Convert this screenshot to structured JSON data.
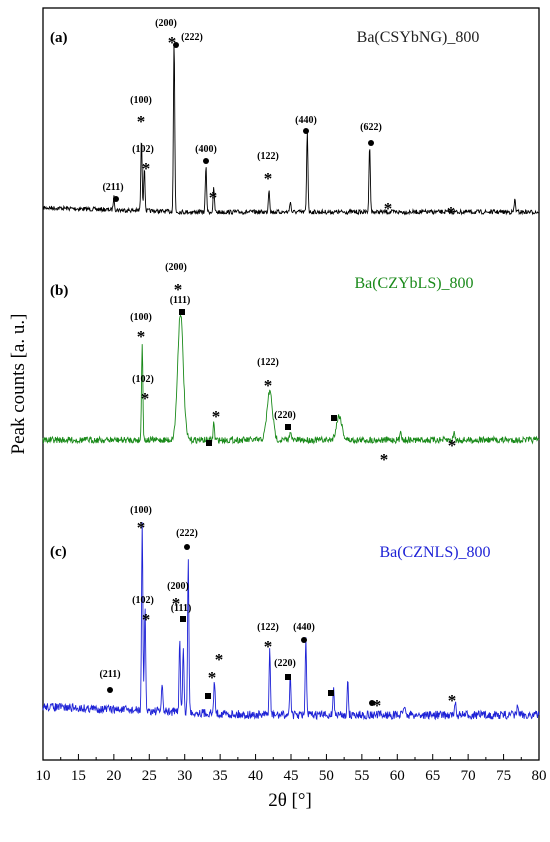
{
  "chart_data": {
    "type": "line",
    "xlabel": "2θ [°]",
    "ylabel": "Peak counts [a. u.]",
    "xlim": [
      10,
      80
    ],
    "x_ticks": [
      10,
      15,
      20,
      25,
      30,
      35,
      40,
      45,
      50,
      55,
      60,
      65,
      70,
      75,
      80
    ],
    "x_tick_labels": [
      "10",
      "15",
      "20",
      "25",
      "30",
      "35",
      "40",
      "45",
      "50",
      "55",
      "60",
      "65",
      "70",
      "75",
      "80"
    ],
    "y_ticks": "none",
    "grid": false,
    "panels": [
      {
        "id": "a",
        "letter": "(a)",
        "sample": "Ba(CSYbNG)_800",
        "color": "#000000",
        "base_pixel_hint": "top",
        "peaks_relative": [
          {
            "x": 20.0,
            "h": 0.07
          },
          {
            "x": 23.9,
            "h": 0.4
          },
          {
            "x": 24.3,
            "h": 0.24
          },
          {
            "x": 28.5,
            "h": 0.95
          },
          {
            "x": 33.0,
            "h": 0.25
          },
          {
            "x": 34.1,
            "h": 0.13
          },
          {
            "x": 41.9,
            "h": 0.13
          },
          {
            "x": 44.9,
            "h": 0.06
          },
          {
            "x": 47.3,
            "h": 0.45
          },
          {
            "x": 56.1,
            "h": 0.38
          },
          {
            "x": 76.6,
            "h": 0.07
          }
        ],
        "annotations": [
          {
            "label": "(211)",
            "x": 20.0,
            "marker": "circle"
          },
          {
            "label": "(100)",
            "x": 23.9,
            "marker": "star"
          },
          {
            "label": "(102)",
            "x": 24.3,
            "marker": "star"
          },
          {
            "label": "(200)",
            "x": 28.4,
            "marker": "star"
          },
          {
            "label": "(222)",
            "x": 28.6,
            "marker": "circle"
          },
          {
            "label": "(400)",
            "x": 33.0,
            "marker": "circle"
          },
          {
            "label": "",
            "x": 34.2,
            "marker": "star"
          },
          {
            "label": "(122)",
            "x": 41.9,
            "marker": "star"
          },
          {
            "label": "(440)",
            "x": 47.2,
            "marker": "circle"
          },
          {
            "label": "(622)",
            "x": 56.1,
            "marker": "circle"
          },
          {
            "label": "",
            "x": 59.0,
            "marker": "star"
          },
          {
            "label": "",
            "x": 67.8,
            "marker": "star"
          }
        ]
      },
      {
        "id": "b",
        "letter": "(b)",
        "sample": "Ba(CZYbLS)_800",
        "color": "#1a8a1a",
        "peaks_relative": [
          {
            "x": 24.0,
            "h": 0.45
          },
          {
            "x": 29.4,
            "h": 0.58
          },
          {
            "x": 34.1,
            "h": 0.08
          },
          {
            "x": 42.0,
            "h": 0.22
          },
          {
            "x": 44.9,
            "h": 0.05
          },
          {
            "x": 51.8,
            "h": 0.11
          },
          {
            "x": 60.5,
            "h": 0.05
          },
          {
            "x": 68.0,
            "h": 0.04
          }
        ],
        "annotations": [
          {
            "label": "(100)",
            "x": 24.0,
            "marker": "star"
          },
          {
            "label": "(102)",
            "x": 24.3,
            "marker": "star"
          },
          {
            "label": "(200)",
            "x": 29.0,
            "marker": "star"
          },
          {
            "label": "(111)",
            "x": 29.6,
            "marker": "square"
          },
          {
            "label": "",
            "x": 34.1,
            "marker": "star"
          },
          {
            "label": "",
            "x": 33.5,
            "marker": "square"
          },
          {
            "label": "(122)",
            "x": 42.0,
            "marker": "star"
          },
          {
            "label": "(220)",
            "x": 44.9,
            "marker": "square"
          },
          {
            "label": "",
            "x": 50.8,
            "marker": "square"
          },
          {
            "label": "",
            "x": 58.7,
            "marker": "star"
          },
          {
            "label": "",
            "x": 68.0,
            "marker": "star"
          }
        ]
      },
      {
        "id": "c",
        "letter": "(c)",
        "sample": "Ba(CZNLS)_800",
        "color": "#1f23d6",
        "peaks_relative": [
          {
            "x": 24.0,
            "h": 1.0
          },
          {
            "x": 24.4,
            "h": 0.55
          },
          {
            "x": 26.8,
            "h": 0.15
          },
          {
            "x": 29.3,
            "h": 0.4
          },
          {
            "x": 29.8,
            "h": 0.35
          },
          {
            "x": 30.5,
            "h": 0.82
          },
          {
            "x": 34.2,
            "h": 0.18
          },
          {
            "x": 42.0,
            "h": 0.35
          },
          {
            "x": 44.9,
            "h": 0.22
          },
          {
            "x": 47.1,
            "h": 0.4
          },
          {
            "x": 51.0,
            "h": 0.15
          },
          {
            "x": 53.0,
            "h": 0.18
          },
          {
            "x": 61.0,
            "h": 0.06
          },
          {
            "x": 68.2,
            "h": 0.06
          },
          {
            "x": 77.0,
            "h": 0.06
          }
        ],
        "annotations": [
          {
            "label": "(211)",
            "x": 19.6,
            "marker": "circle"
          },
          {
            "label": "(100)",
            "x": 24.0,
            "marker": "star"
          },
          {
            "label": "(102)",
            "x": 24.4,
            "marker": "star"
          },
          {
            "label": "(222)",
            "x": 30.5,
            "marker": "circle"
          },
          {
            "label": "(200)",
            "x": 29.0,
            "marker": "star"
          },
          {
            "label": "(111)",
            "x": 29.7,
            "marker": "square"
          },
          {
            "label": "",
            "x": 33.5,
            "marker": "square"
          },
          {
            "label": "",
            "x": 34.2,
            "marker": "star"
          },
          {
            "label": "",
            "x": 34.9,
            "marker": "star"
          },
          {
            "label": "(122)",
            "x": 41.9,
            "marker": "star"
          },
          {
            "label": "(220)",
            "x": 44.9,
            "marker": "square"
          },
          {
            "label": "(440)",
            "x": 47.1,
            "marker": "circle"
          },
          {
            "label": "",
            "x": 50.9,
            "marker": "square"
          },
          {
            "label": "",
            "x": 56.4,
            "marker": "circle"
          },
          {
            "label": "",
            "x": 57.0,
            "marker": "star"
          },
          {
            "label": "",
            "x": 67.8,
            "marker": "star"
          }
        ]
      }
    ]
  }
}
